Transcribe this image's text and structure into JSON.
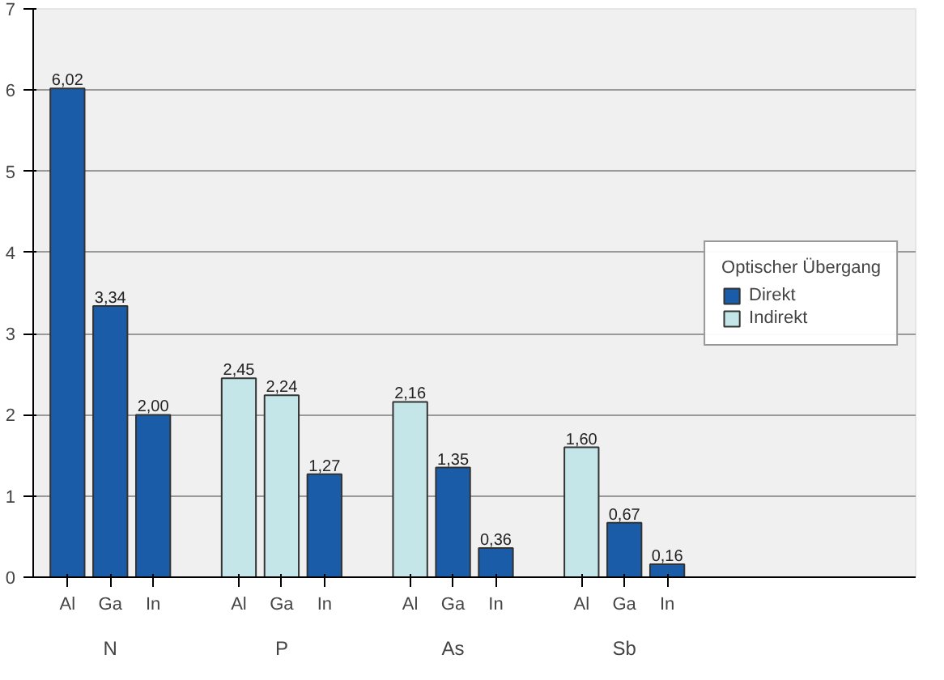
{
  "chart_data": {
    "type": "bar",
    "categories": [
      "Al",
      "Ga",
      "In",
      "Al",
      "Ga",
      "In",
      "Al",
      "Ga",
      "In",
      "Al",
      "Ga",
      "In"
    ],
    "series": [
      {
        "name": "Direkt",
        "color": "#1a5ca8",
        "values": [
          6.02,
          3.34,
          2.0,
          null,
          null,
          1.27,
          null,
          1.35,
          0.36,
          null,
          0.67,
          0.16
        ],
        "value_labels": [
          "6,02",
          "3,34",
          "2,00",
          null,
          null,
          "1,27",
          null,
          "1,35",
          "0,36",
          null,
          "0,67",
          "0,16"
        ]
      },
      {
        "name": "Indirekt",
        "color": "#c4e6e8",
        "values": [
          null,
          null,
          null,
          2.45,
          2.24,
          null,
          2.16,
          null,
          null,
          1.6,
          null,
          null
        ],
        "value_labels": [
          null,
          null,
          null,
          "2,45",
          "2,24",
          null,
          "2,16",
          null,
          null,
          "1,60",
          null,
          null
        ]
      }
    ],
    "legend_title": "Optischer Übergang",
    "annotations": [
      "N",
      "P",
      "As",
      "Sb"
    ],
    "ylim": [
      0,
      7
    ],
    "yticks": [
      0,
      1,
      2,
      3,
      4,
      5,
      6,
      7
    ],
    "grid": "y",
    "legend": "right"
  }
}
